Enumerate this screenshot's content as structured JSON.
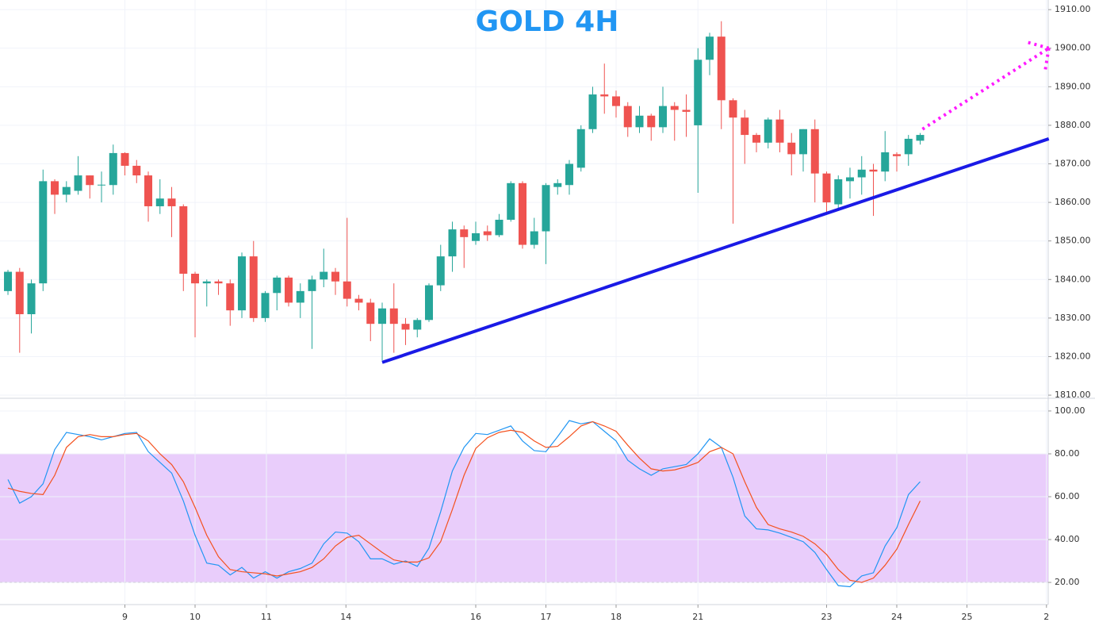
{
  "chart_data": [
    {
      "type": "candlestick",
      "title": "GOLD 4H",
      "up_color": "#26a69a",
      "down_color": "#ef5350",
      "x": [
        0,
        1,
        2,
        3,
        4,
        5,
        6,
        7,
        8,
        9,
        10,
        11,
        12,
        13,
        14,
        15,
        16,
        17,
        18,
        19,
        20,
        21,
        22,
        23,
        24,
        25,
        26,
        27,
        28,
        29,
        30,
        31,
        32,
        33,
        34,
        35,
        36,
        37,
        38,
        39,
        40,
        41,
        42,
        43,
        44,
        45,
        46,
        47,
        48,
        49,
        50,
        51,
        52,
        53,
        54,
        55,
        56,
        57,
        58,
        59,
        60,
        61,
        62,
        63,
        64,
        65,
        66,
        67,
        68,
        69,
        70,
        71,
        72,
        73,
        74,
        75,
        76,
        77,
        78
      ],
      "open": [
        1837,
        1842,
        1831,
        1839,
        1865.5,
        1862,
        1863,
        1867,
        1864.4,
        1864.5,
        1872.8,
        1869.5,
        1867,
        1859,
        1861,
        1859,
        1841.5,
        1839,
        1839.5,
        1839,
        1832,
        1846,
        1830,
        1836.5,
        1840.5,
        1834,
        1837,
        1840,
        1842,
        1839.5,
        1835,
        1834,
        1828.5,
        1832.5,
        1828.5,
        1827,
        1829.5,
        1838.5,
        1846,
        1853,
        1850,
        1852.5,
        1851.5,
        1855.5,
        1865,
        1849,
        1852.5,
        1864,
        1864.5,
        1869,
        1879,
        1888,
        1887.5,
        1885,
        1879.5,
        1882.5,
        1879.5,
        1885,
        1884,
        1880,
        1897,
        1903,
        1886.5,
        1882,
        1877.5,
        1875.5,
        1881.5,
        1875.5,
        1872.5,
        1879,
        1867.5,
        1859.5,
        1865.5,
        1866.5,
        1868.5,
        1868,
        1872.5,
        1872.5,
        1876
      ],
      "high": [
        1842.5,
        1843,
        1840,
        1868.5,
        1866,
        1865.5,
        1872,
        1867,
        1868,
        1875,
        1873,
        1871,
        1868,
        1866,
        1864,
        1859.5,
        1842,
        1840,
        1840,
        1840,
        1847,
        1850,
        1837,
        1841,
        1841,
        1839,
        1841,
        1848,
        1843,
        1856,
        1836,
        1835,
        1834,
        1839,
        1830,
        1830,
        1839,
        1849,
        1855,
        1854,
        1855,
        1854,
        1857,
        1865.5,
        1865.5,
        1856,
        1865,
        1866,
        1871,
        1880,
        1890,
        1896,
        1889,
        1886,
        1885,
        1883,
        1890,
        1886,
        1888,
        1900,
        1904,
        1907,
        1887,
        1884,
        1878,
        1882,
        1884,
        1878,
        1879,
        1881.5,
        1868,
        1867,
        1869,
        1872,
        1870,
        1878.5,
        1873,
        1877.5,
        1878
      ],
      "low": [
        1836,
        1821,
        1826,
        1837,
        1857,
        1860,
        1862,
        1861,
        1860,
        1862,
        1867,
        1865,
        1855,
        1857,
        1851,
        1837,
        1825,
        1833,
        1836,
        1828,
        1830,
        1829,
        1829,
        1832,
        1833,
        1830,
        1822,
        1838,
        1836,
        1833,
        1832,
        1824,
        1819,
        1821,
        1823,
        1825,
        1829,
        1837,
        1842,
        1843,
        1849,
        1850,
        1851,
        1855,
        1848,
        1848,
        1844,
        1862,
        1862,
        1868,
        1878,
        1883,
        1882,
        1877,
        1878,
        1876,
        1878,
        1876,
        1877,
        1862.5,
        1893,
        1879,
        1854.5,
        1870,
        1873,
        1874,
        1873,
        1867,
        1868,
        1860,
        1857,
        1858,
        1861,
        1862,
        1856.5,
        1865.5,
        1868,
        1869.5,
        1875
      ],
      "close": [
        1842,
        1831,
        1839,
        1865.5,
        1862,
        1864,
        1867,
        1864.5,
        1864.6,
        1872.8,
        1869.5,
        1867,
        1859,
        1861,
        1859,
        1841.5,
        1839,
        1839.5,
        1839,
        1832,
        1846,
        1830,
        1836.5,
        1840.5,
        1834,
        1837,
        1840,
        1842,
        1839.5,
        1835,
        1834,
        1828.5,
        1832.5,
        1828.5,
        1827,
        1829.5,
        1838.5,
        1846,
        1853,
        1851,
        1852,
        1851.5,
        1855.5,
        1865,
        1849,
        1852.5,
        1864.5,
        1865,
        1870,
        1879,
        1888,
        1887.5,
        1885,
        1879.5,
        1882.5,
        1879.5,
        1885,
        1884,
        1883.5,
        1897,
        1903,
        1886.5,
        1882,
        1877.5,
        1875.5,
        1881.5,
        1875.5,
        1872.5,
        1879,
        1867.5,
        1860,
        1866,
        1866.5,
        1868.5,
        1868,
        1873,
        1872,
        1876.5,
        1877.5
      ],
      "xlim": [
        -0.68,
        88.95
      ],
      "xticks": [
        {
          "value": 10,
          "label": "9"
        },
        {
          "value": 16,
          "label": "10"
        },
        {
          "value": 22.1,
          "label": "11"
        },
        {
          "value": 28.9,
          "label": "14"
        },
        {
          "value": 40,
          "label": "16"
        },
        {
          "value": 46,
          "label": "17"
        },
        {
          "value": 52,
          "label": "18"
        },
        {
          "value": 59,
          "label": "21"
        },
        {
          "value": 70,
          "label": "23"
        },
        {
          "value": 76,
          "label": "24"
        },
        {
          "value": 82,
          "label": "25"
        },
        {
          "value": 88.8,
          "label": "2"
        }
      ],
      "ylim": [
        1809.6,
        1912.5
      ],
      "yticks": [
        {
          "value": 1810,
          "label": "1810.00"
        },
        {
          "value": 1820,
          "label": "1820.00"
        },
        {
          "value": 1830,
          "label": "1830.00"
        },
        {
          "value": 1840,
          "label": "1840.00"
        },
        {
          "value": 1850,
          "label": "1850.00"
        },
        {
          "value": 1860,
          "label": "1860.00"
        },
        {
          "value": 1870,
          "label": "1870.00"
        },
        {
          "value": 1880,
          "label": "1880.00"
        },
        {
          "value": 1890,
          "label": "1890.00"
        },
        {
          "value": 1900,
          "label": "1900.00"
        },
        {
          "value": 1910,
          "label": "1910.00"
        }
      ],
      "grid": true,
      "trendlines": [
        {
          "start": [
            32,
            1818.5
          ],
          "end": [
            89,
            1876.5
          ],
          "color": "#1a1ae6",
          "style": "solid"
        },
        {
          "start": [
            78.2,
            1879
          ],
          "end": [
            89,
            1900
          ],
          "color": "#ff1aff",
          "style": "dotted",
          "arrow": true
        }
      ]
    },
    {
      "type": "line",
      "x": [
        0,
        1,
        2,
        3,
        4,
        5,
        6,
        7,
        8,
        9,
        10,
        11,
        12,
        13,
        14,
        15,
        16,
        17,
        18,
        19,
        20,
        21,
        22,
        23,
        24,
        25,
        26,
        27,
        28,
        29,
        30,
        31,
        32,
        33,
        34,
        35,
        36,
        37,
        38,
        39,
        40,
        41,
        42,
        43,
        44,
        45,
        46,
        47,
        48,
        49,
        50,
        51,
        52,
        53,
        54,
        55,
        56,
        57,
        58,
        59,
        60,
        61,
        62,
        63,
        64,
        65,
        66,
        67,
        68,
        69,
        70,
        71,
        72,
        73,
        74,
        75,
        76,
        77,
        78
      ],
      "series": [
        {
          "color": "#2196f3",
          "values": [
            68,
            57,
            60,
            66,
            82,
            90,
            89,
            88,
            86.5,
            88,
            89.5,
            90,
            81,
            76,
            71,
            58,
            42,
            29,
            28,
            23.5,
            27,
            22,
            25,
            22,
            25,
            26.5,
            29,
            38,
            43.5,
            43,
            39,
            31,
            31,
            28.5,
            30,
            27.5,
            36,
            53,
            72,
            83,
            89.5,
            89,
            91,
            93,
            86,
            81.5,
            81,
            88,
            95.5,
            94,
            95,
            90.5,
            86,
            77,
            73,
            70,
            73,
            74,
            75,
            80,
            87,
            83,
            69,
            51,
            45,
            44.5,
            43,
            41,
            39,
            34,
            26,
            18.5,
            18,
            23,
            24.5,
            37,
            45.5,
            61,
            67
          ]
        },
        {
          "color": "#f4511e",
          "values": [
            64,
            62.5,
            61.5,
            61,
            70,
            83,
            88,
            89,
            88,
            88,
            89,
            89.5,
            86,
            80,
            75,
            67,
            55,
            42,
            32,
            26,
            25,
            24.5,
            24,
            23,
            24,
            25,
            27,
            31,
            37,
            41,
            42,
            38,
            34,
            30.5,
            29.5,
            29.5,
            31.5,
            39,
            54,
            70,
            82.5,
            87.5,
            90,
            91,
            90,
            86,
            83,
            83.5,
            88,
            93,
            95,
            93,
            90.5,
            84,
            78,
            73,
            72,
            72.5,
            74,
            76,
            81,
            83,
            80,
            67,
            55,
            47,
            45,
            43.5,
            41.5,
            38,
            33,
            26,
            21,
            20,
            22,
            28,
            35.5,
            47,
            58
          ]
        }
      ],
      "band": [
        20,
        80
      ],
      "band_color": "#e9cdfb",
      "xlim": [
        -0.68,
        88.95
      ],
      "ylim": [
        10.4,
        104.8
      ],
      "yticks": [
        {
          "value": 20,
          "label": "20.00"
        },
        {
          "value": 40,
          "label": "40.00"
        },
        {
          "value": 60,
          "label": "60.00"
        },
        {
          "value": 80,
          "label": "80.00"
        },
        {
          "value": 100,
          "label": "100.00"
        }
      ],
      "grid": true
    }
  ]
}
